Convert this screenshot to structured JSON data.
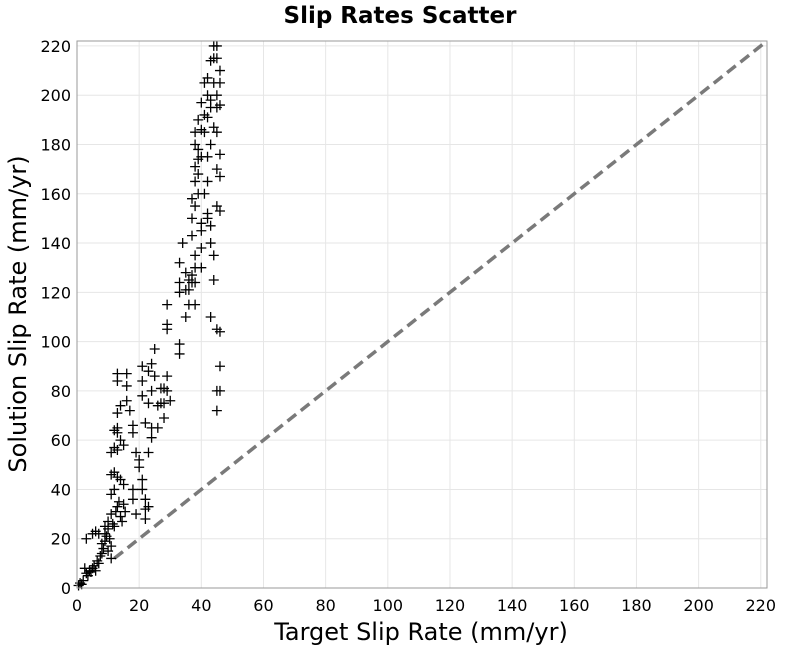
{
  "chart_data": {
    "type": "scatter",
    "title": "Slip Rates Scatter",
    "xlabel": "Target Slip Rate (mm/yr)",
    "ylabel": "Solution Slip Rate (mm/yr)",
    "xlim": [
      0,
      222
    ],
    "ylim": [
      0,
      222
    ],
    "xticks": [
      0,
      20,
      40,
      60,
      80,
      100,
      120,
      140,
      160,
      180,
      200,
      220
    ],
    "yticks": [
      0,
      20,
      40,
      60,
      80,
      100,
      120,
      140,
      160,
      180,
      200,
      220
    ],
    "grid": true,
    "marker": "plus",
    "reference_line": {
      "style": "dashed",
      "color": "#7a7a7a",
      "from": [
        12,
        12
      ],
      "to": [
        222,
        222
      ]
    },
    "series": [
      {
        "values": [
          [
            0.5,
            1
          ],
          [
            1,
            2
          ],
          [
            1.5,
            1.5
          ],
          [
            2,
            3
          ],
          [
            2.5,
            8
          ],
          [
            3,
            6
          ],
          [
            3.5,
            5
          ],
          [
            4,
            7
          ],
          [
            4.5,
            6.5
          ],
          [
            5,
            8
          ],
          [
            5.5,
            9
          ],
          [
            6,
            7
          ],
          [
            6.5,
            11
          ],
          [
            7,
            10
          ],
          [
            7.5,
            13
          ],
          [
            8,
            14
          ],
          [
            8.5,
            16
          ],
          [
            9,
            19
          ],
          [
            9.5,
            21
          ],
          [
            10,
            24
          ],
          [
            10.5,
            20
          ],
          [
            11,
            17
          ],
          [
            11.5,
            26
          ],
          [
            12,
            25
          ],
          [
            12.5,
            31
          ],
          [
            13,
            33
          ],
          [
            13.5,
            35
          ],
          [
            14,
            29
          ],
          [
            14.5,
            27
          ],
          [
            15,
            34
          ],
          [
            15.5,
            31
          ],
          [
            9,
            25
          ],
          [
            8,
            18
          ],
          [
            9,
            22
          ],
          [
            10,
            27
          ],
          [
            11,
            30
          ],
          [
            10,
            15
          ],
          [
            11,
            12
          ],
          [
            3,
            20
          ],
          [
            5,
            22
          ],
          [
            6,
            23
          ],
          [
            7,
            22
          ],
          [
            11,
            38
          ],
          [
            12,
            40
          ],
          [
            11,
            46
          ],
          [
            12,
            47
          ],
          [
            13,
            45
          ],
          [
            14,
            44
          ],
          [
            15,
            42
          ],
          [
            11,
            55
          ],
          [
            12,
            57
          ],
          [
            13,
            56
          ],
          [
            12,
            64
          ],
          [
            13,
            65
          ],
          [
            13,
            63
          ],
          [
            14,
            60
          ],
          [
            15,
            58
          ],
          [
            13,
            71
          ],
          [
            14,
            74
          ],
          [
            13,
            84
          ],
          [
            13,
            87
          ],
          [
            16,
            87
          ],
          [
            16,
            82
          ],
          [
            16,
            76
          ],
          [
            17,
            72
          ],
          [
            18,
            66
          ],
          [
            18,
            63
          ],
          [
            19,
            55
          ],
          [
            20,
            52
          ],
          [
            20,
            49
          ],
          [
            21,
            44
          ],
          [
            21,
            40
          ],
          [
            22,
            36
          ],
          [
            22,
            32
          ],
          [
            22,
            28
          ],
          [
            18,
            40
          ],
          [
            18,
            36
          ],
          [
            19,
            30
          ],
          [
            23,
            33
          ],
          [
            21,
            78
          ],
          [
            21,
            84
          ],
          [
            21,
            90
          ],
          [
            23,
            88
          ],
          [
            24,
            91
          ],
          [
            25,
            97
          ],
          [
            25,
            86
          ],
          [
            24,
            80
          ],
          [
            23,
            75
          ],
          [
            22,
            67
          ],
          [
            24,
            65
          ],
          [
            24,
            61
          ],
          [
            23,
            55
          ],
          [
            26,
            74
          ],
          [
            26,
            65
          ],
          [
            27,
            75
          ],
          [
            27,
            81
          ],
          [
            28,
            81
          ],
          [
            28,
            75
          ],
          [
            28,
            69
          ],
          [
            29,
            86
          ],
          [
            29,
            80
          ],
          [
            30,
            76
          ],
          [
            29,
            105
          ],
          [
            29,
            107
          ],
          [
            29,
            115
          ],
          [
            33,
            95
          ],
          [
            33,
            99
          ],
          [
            33,
            120
          ],
          [
            33,
            124
          ],
          [
            33,
            132
          ],
          [
            35,
            121
          ],
          [
            35,
            110
          ],
          [
            36,
            125
          ],
          [
            36,
            121
          ],
          [
            37,
            124
          ],
          [
            37,
            127
          ],
          [
            38,
            124
          ],
          [
            38,
            135
          ],
          [
            38,
            130
          ],
          [
            38,
            115
          ],
          [
            37,
            150
          ],
          [
            37,
            143
          ],
          [
            37,
            158
          ],
          [
            38,
            155
          ],
          [
            38,
            165
          ],
          [
            38,
            171
          ],
          [
            38,
            180
          ],
          [
            38,
            185
          ],
          [
            39,
            160
          ],
          [
            39,
            168
          ],
          [
            39,
            174
          ],
          [
            39,
            178
          ],
          [
            39,
            190
          ],
          [
            40,
            130
          ],
          [
            40,
            138
          ],
          [
            40,
            145
          ],
          [
            40,
            148
          ],
          [
            40,
            175
          ],
          [
            40,
            186
          ],
          [
            40,
            197
          ],
          [
            41,
            185
          ],
          [
            41,
            192
          ],
          [
            41,
            205
          ],
          [
            42,
            152
          ],
          [
            42,
            165
          ],
          [
            42,
            175
          ],
          [
            42,
            191
          ],
          [
            42,
            200
          ],
          [
            42,
            207
          ],
          [
            43,
            140
          ],
          [
            43,
            147
          ],
          [
            43,
            180
          ],
          [
            43,
            195
          ],
          [
            43,
            198
          ],
          [
            43,
            214
          ],
          [
            44,
            215
          ],
          [
            44,
            205
          ],
          [
            44,
            187
          ],
          [
            44,
            135
          ],
          [
            44,
            125
          ],
          [
            44,
            220
          ],
          [
            45,
            215
          ],
          [
            45,
            220
          ],
          [
            45,
            200
          ],
          [
            45,
            195
          ],
          [
            45,
            185
          ],
          [
            45,
            170
          ],
          [
            45,
            155
          ],
          [
            45,
            72
          ],
          [
            45,
            80
          ],
          [
            45,
            105
          ],
          [
            46,
            167
          ],
          [
            46,
            176
          ],
          [
            46,
            153
          ],
          [
            46,
            210
          ],
          [
            46,
            205
          ],
          [
            46,
            196
          ],
          [
            46,
            80
          ],
          [
            46,
            90
          ],
          [
            46,
            104
          ],
          [
            41,
            160
          ],
          [
            42,
            150
          ],
          [
            43,
            110
          ],
          [
            35,
            128
          ],
          [
            34,
            140
          ],
          [
            36,
            115
          ]
        ]
      }
    ]
  }
}
